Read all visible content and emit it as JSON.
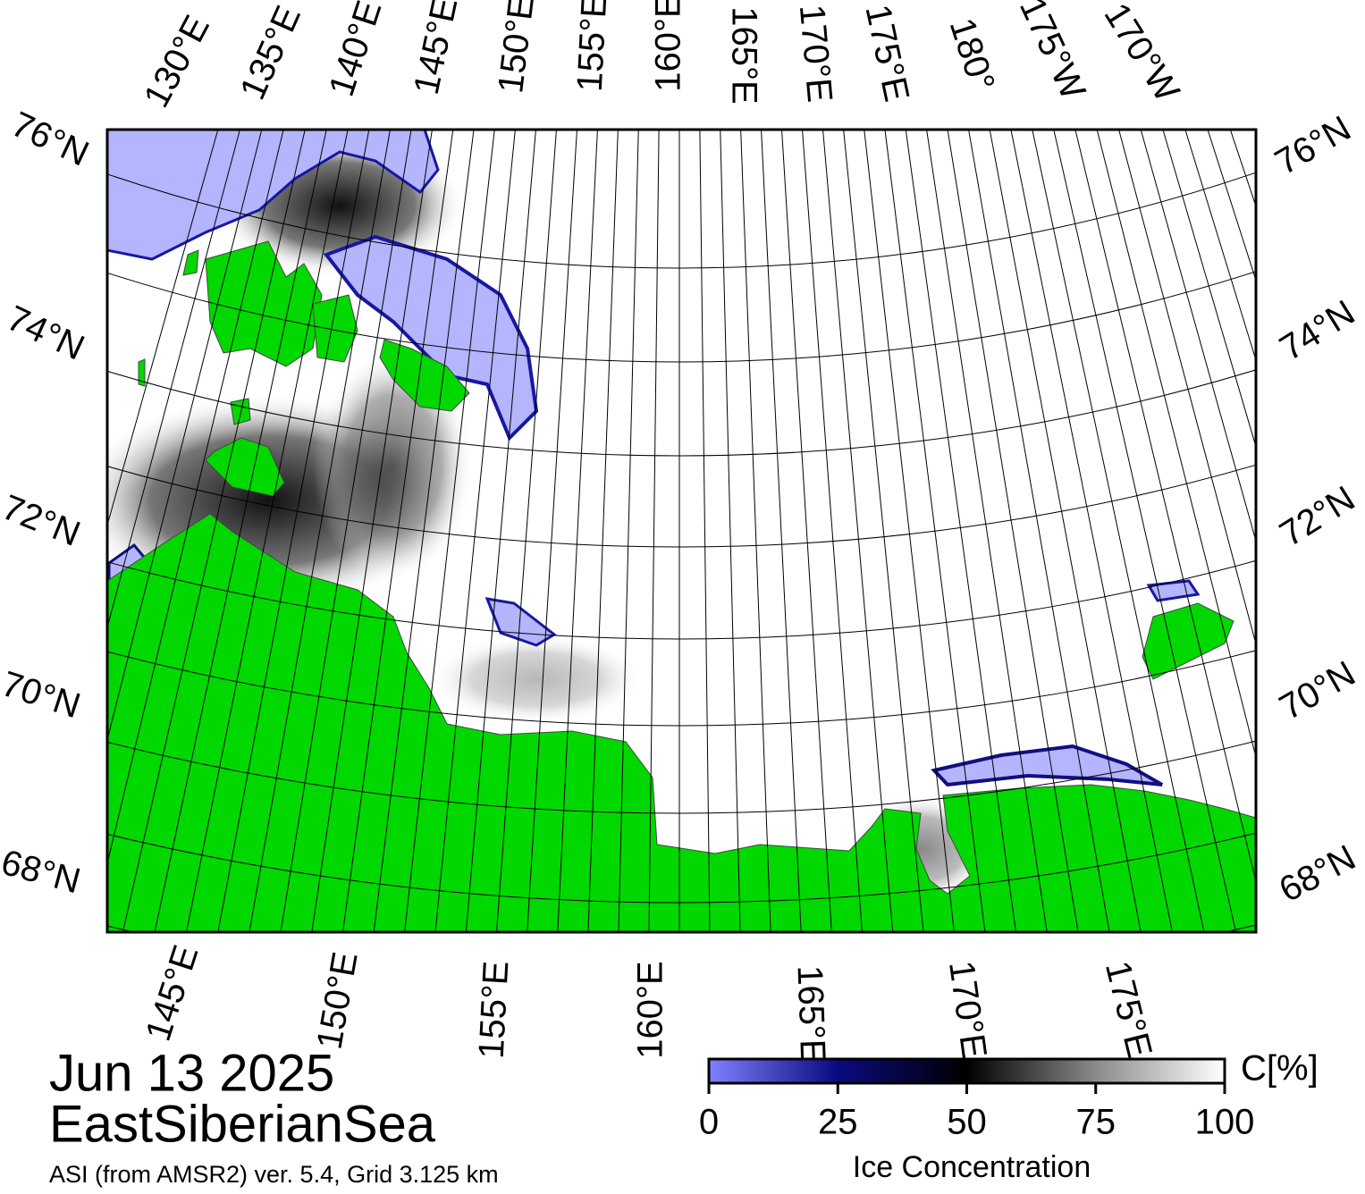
{
  "map": {
    "top_labels": [
      "130°E",
      "135°E",
      "140°E",
      "145°E",
      "150°E",
      "155°E",
      "160°E",
      "165°E",
      "170°E",
      "175°E",
      "180°",
      "175°W",
      "170°W"
    ],
    "left_labels": [
      "76°N",
      "74°N",
      "72°N",
      "70°N",
      "68°N"
    ],
    "right_labels": [
      "76°N",
      "74°N",
      "72°N",
      "70°N",
      "68°N"
    ],
    "bottom_labels": [
      "145°E",
      "150°E",
      "155°E",
      "160°E",
      "165°E",
      "170°E",
      "175°E"
    ]
  },
  "date": "Jun 13 2025",
  "region": "EastSiberianSea",
  "source": "ASI (from AMSR2) ver. 5.4,  Grid 3.125 km",
  "colorbar": {
    "title": "Ice Concentration",
    "unit": "C[%]",
    "range": [
      0,
      100
    ],
    "ticks": [
      0,
      25,
      50,
      75,
      100
    ]
  }
}
